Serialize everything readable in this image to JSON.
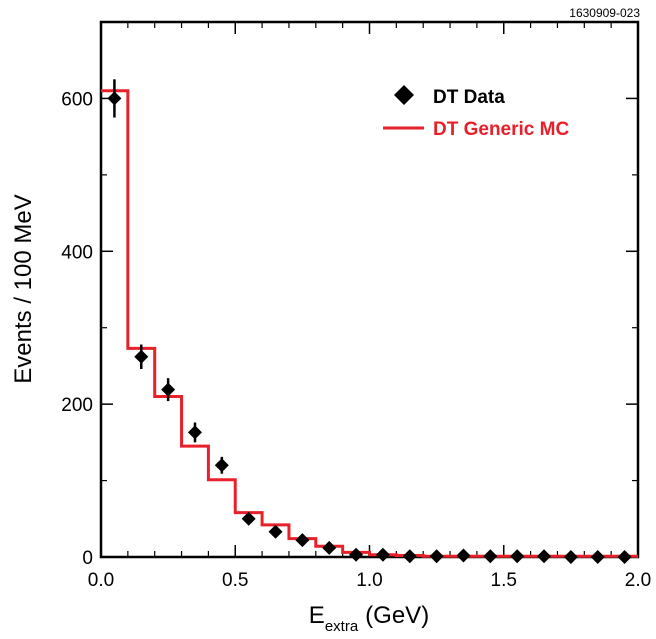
{
  "figure_id": "1630909-023",
  "chart_data": {
    "type": "scatter",
    "xlabel_main": "E",
    "xlabel_sub": "extra",
    "xlabel_unit": "(GeV)",
    "ylabel": "Events / 100 MeV",
    "xlim": [
      0.0,
      2.0
    ],
    "ylim": [
      0,
      700
    ],
    "x_ticks": [
      0.0,
      0.5,
      1.0,
      1.5,
      2.0
    ],
    "x_tick_labels": [
      "0.0",
      "0.5",
      "1.0",
      "1.5",
      "2.0"
    ],
    "y_ticks": [
      0,
      200,
      400,
      600
    ],
    "y_tick_labels": [
      "0",
      "200",
      "400",
      "600"
    ],
    "grid": false,
    "legend_position": "top-right",
    "colors": {
      "data": "#000000",
      "mc": "#e8202a"
    },
    "series": [
      {
        "name": "DT Data",
        "kind": "points",
        "x": [
          0.05,
          0.15,
          0.25,
          0.35,
          0.45,
          0.55,
          0.65,
          0.75,
          0.85,
          0.95,
          1.05,
          1.15,
          1.25,
          1.35,
          1.45,
          1.55,
          1.65,
          1.75,
          1.85,
          1.95
        ],
        "y": [
          600,
          262,
          219,
          163,
          120,
          50,
          33,
          22,
          12,
          3,
          3,
          1,
          1,
          2,
          1,
          1,
          1,
          0,
          0,
          0
        ],
        "err": [
          25,
          16,
          15,
          13,
          11,
          7,
          6,
          5,
          3.5,
          2,
          2,
          1,
          1,
          1.5,
          1,
          1,
          1,
          1,
          1,
          1
        ]
      },
      {
        "name": "DT Generic MC",
        "kind": "step",
        "bin_edges": [
          0.0,
          0.1,
          0.2,
          0.3,
          0.4,
          0.5,
          0.6,
          0.7,
          0.8,
          0.9,
          1.0,
          1.1,
          1.2,
          1.3,
          1.4,
          1.5,
          1.6,
          1.7,
          1.8,
          1.9,
          2.0
        ],
        "values": [
          610,
          273,
          210,
          145,
          101,
          58,
          42,
          24,
          14,
          6,
          3,
          2,
          1,
          1,
          1,
          1,
          1,
          1,
          1,
          1
        ]
      }
    ]
  }
}
